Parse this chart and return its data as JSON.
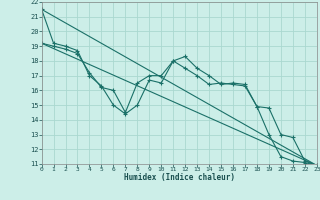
{
  "xlabel": "Humidex (Indice chaleur)",
  "bg_color": "#cceee8",
  "grid_color": "#aad8d0",
  "line_color": "#1a7068",
  "xmin": 0,
  "xmax": 23,
  "ymin": 11,
  "ymax": 22,
  "series": [
    {
      "x": [
        0,
        1,
        2,
        3,
        4,
        5,
        6,
        7,
        8,
        9,
        10,
        11,
        12,
        13,
        14,
        15,
        16,
        17,
        18,
        19,
        20,
        21,
        22,
        23
      ],
      "y": [
        21.5,
        19.2,
        19.0,
        18.7,
        17.0,
        16.3,
        15.0,
        14.4,
        15.0,
        16.7,
        16.5,
        18.0,
        18.3,
        17.5,
        17.0,
        16.4,
        16.5,
        16.4,
        14.9,
        13.0,
        11.5,
        11.2,
        11.1,
        10.9
      ],
      "marker": true
    },
    {
      "x": [
        0,
        1,
        2,
        3,
        4,
        5,
        6,
        7,
        8,
        9,
        10,
        11,
        12,
        13,
        14,
        15,
        16,
        17,
        18,
        19,
        20,
        21,
        22,
        23
      ],
      "y": [
        19.2,
        19.0,
        18.8,
        18.5,
        17.2,
        16.2,
        16.0,
        14.5,
        16.5,
        17.0,
        17.0,
        18.0,
        17.5,
        17.0,
        16.4,
        16.5,
        16.4,
        16.3,
        14.9,
        14.8,
        13.0,
        12.8,
        11.2,
        10.9
      ],
      "marker": true
    },
    {
      "x": [
        0,
        23
      ],
      "y": [
        21.5,
        10.9
      ],
      "marker": false
    },
    {
      "x": [
        0,
        23
      ],
      "y": [
        19.2,
        10.9
      ],
      "marker": false
    }
  ]
}
